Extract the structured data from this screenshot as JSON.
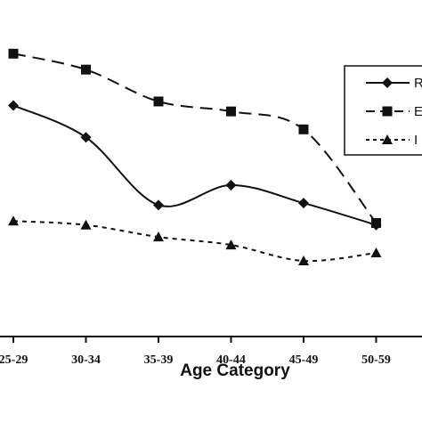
{
  "chart_data": {
    "type": "line",
    "categories": [
      "25-29",
      "30-34",
      "35-39",
      "40-44",
      "45-49",
      "50-59"
    ],
    "xlabel": "Age Category",
    "series": [
      {
        "name": "R",
        "marker": "diamond",
        "line": "solid",
        "color": "#111111",
        "values": [
          5.8,
          5.0,
          3.3,
          3.8,
          3.35,
          2.8
        ]
      },
      {
        "name": "E",
        "marker": "square",
        "line": "dashed",
        "color": "#111111",
        "values": [
          7.1,
          6.7,
          5.9,
          5.65,
          5.2,
          2.85
        ]
      },
      {
        "name": "I",
        "marker": "triangle",
        "line": "dotted",
        "color": "#111111",
        "values": [
          2.9,
          2.8,
          2.5,
          2.3,
          1.9,
          2.1
        ]
      }
    ],
    "ylim": [
      0,
      8
    ],
    "grid": false,
    "legend_position": "top-right"
  }
}
